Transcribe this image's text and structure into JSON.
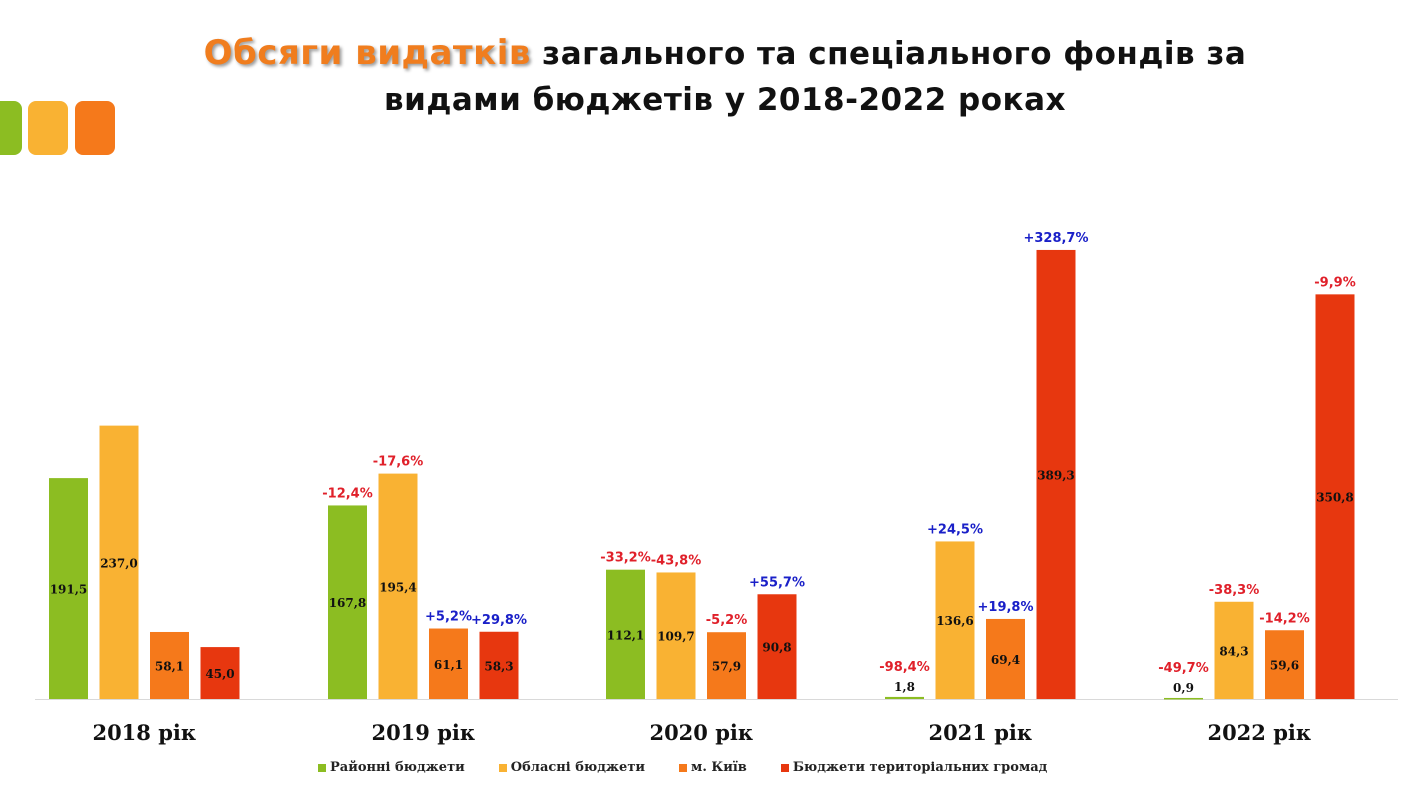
{
  "title": {
    "highlight": "Обсяги видатків",
    "line1_rest": " загального та спеціального фондів за",
    "line2": "видами бюджетів у 2018-2022 роках"
  },
  "colors": {
    "green": "#8cbd22",
    "yellow": "#f9b233",
    "orange": "#f5791b",
    "red": "#e7370f",
    "neg": "#e0202a",
    "pos": "#1a20c8"
  },
  "chart_data": {
    "type": "bar",
    "categories": [
      "2018 рік",
      "2019 рік",
      "2020 рік",
      "2021 рік",
      "2022 рік"
    ],
    "ylim": [
      0,
      430
    ],
    "grid": false,
    "legend_position": "bottom",
    "series": [
      {
        "name": "Районні бюджети",
        "color": "#8cbd22",
        "values": [
          191.5,
          167.8,
          112.1,
          1.8,
          0.9
        ],
        "labels": [
          "191,5",
          "167,8",
          "112,1",
          "1,8",
          "0,9"
        ],
        "changes": [
          "",
          "-12,4%",
          "-33,2%",
          "-98,4%",
          "-49,7%"
        ]
      },
      {
        "name": "Обласні бюджети",
        "color": "#f9b233",
        "values": [
          237.0,
          195.4,
          109.7,
          136.6,
          84.3
        ],
        "labels": [
          "237,0",
          "195,4",
          "109,7",
          "136,6",
          "84,3"
        ],
        "changes": [
          "",
          "-17,6%",
          "-43,8%",
          "+24,5%",
          "-38,3%"
        ]
      },
      {
        "name": "м. Київ",
        "color": "#f5791b",
        "values": [
          58.1,
          61.1,
          57.9,
          69.4,
          59.6
        ],
        "labels": [
          "58,1",
          "61,1",
          "57,9",
          "69,4",
          "59,6"
        ],
        "changes": [
          "",
          "+5,2%",
          "-5,2%",
          "+19,8%",
          "-14,2%"
        ]
      },
      {
        "name": "Бюджети територіальних громад",
        "color": "#e7370f",
        "values": [
          45.0,
          58.3,
          90.8,
          389.3,
          350.8
        ],
        "labels": [
          "45,0",
          "58,3",
          "90,8",
          "389,3",
          "350,8"
        ],
        "changes": [
          "",
          "+29,8%",
          "+55,7%",
          "+328,7%",
          "-9,9%"
        ]
      }
    ]
  }
}
